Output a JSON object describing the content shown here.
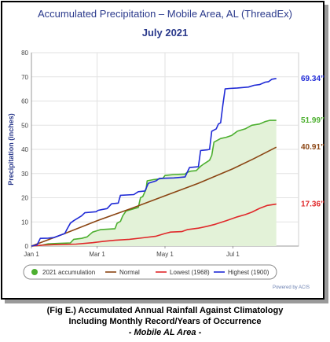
{
  "chart_data": {
    "type": "line",
    "title": "Accumulated Precipitation – Mobile Area, AL (ThreadEx)",
    "subtitle": "July 2021",
    "ylabel": "Precipitation (inches)",
    "ylim": [
      0,
      80
    ],
    "yticks": [
      0,
      10,
      20,
      30,
      40,
      50,
      60,
      70,
      80
    ],
    "xlim": [
      0,
      240
    ],
    "xticks": [
      {
        "label": "Jan 1",
        "day": 0
      },
      {
        "label": "Mar 1",
        "day": 59
      },
      {
        "label": "May 1",
        "day": 120
      },
      {
        "label": "Jul 1",
        "day": 181
      }
    ],
    "grid": true,
    "legend_position": "bottom",
    "series": [
      {
        "name": "2021 accumulation",
        "color": "#4caf2f",
        "fill": "#e3f2d8",
        "end_label": "51.99”",
        "points": [
          [
            0,
            0
          ],
          [
            3,
            0.1
          ],
          [
            8,
            0.3
          ],
          [
            15,
            0.9
          ],
          [
            25,
            1.1
          ],
          [
            35,
            1.3
          ],
          [
            38,
            2.8
          ],
          [
            45,
            3.2
          ],
          [
            50,
            3.8
          ],
          [
            55,
            5.8
          ],
          [
            58,
            6.2
          ],
          [
            62,
            6.8
          ],
          [
            75,
            7.2
          ],
          [
            77,
            9.5
          ],
          [
            80,
            10.2
          ],
          [
            82,
            12.5
          ],
          [
            85,
            14.5
          ],
          [
            90,
            15.2
          ],
          [
            96,
            16.0
          ],
          [
            98,
            20.0
          ],
          [
            100,
            20.5
          ],
          [
            103,
            23.5
          ],
          [
            104,
            27.0
          ],
          [
            110,
            27.5
          ],
          [
            115,
            27.8
          ],
          [
            118,
            28.0
          ],
          [
            120,
            29.2
          ],
          [
            128,
            29.6
          ],
          [
            138,
            29.8
          ],
          [
            140,
            30.5
          ],
          [
            143,
            31.0
          ],
          [
            148,
            31.2
          ],
          [
            152,
            33.0
          ],
          [
            155,
            34.0
          ],
          [
            160,
            35.5
          ],
          [
            162,
            37.5
          ],
          [
            164,
            43.0
          ],
          [
            170,
            44.5
          ],
          [
            175,
            45.0
          ],
          [
            180,
            45.8
          ],
          [
            185,
            47.5
          ],
          [
            192,
            48.5
          ],
          [
            198,
            50.0
          ],
          [
            205,
            50.5
          ],
          [
            210,
            51.5
          ],
          [
            214,
            52.0
          ],
          [
            220,
            51.99
          ]
        ]
      },
      {
        "name": "Normal",
        "color": "#8b4513",
        "end_label": "40.91”",
        "points": [
          [
            0,
            0
          ],
          [
            30,
            5.2
          ],
          [
            59,
            10.5
          ],
          [
            90,
            15.6
          ],
          [
            120,
            20.8
          ],
          [
            150,
            26.0
          ],
          [
            181,
            32.0
          ],
          [
            200,
            36.2
          ],
          [
            220,
            40.91
          ]
        ]
      },
      {
        "name": "Lowest (1968)",
        "color": "#e0282a",
        "end_label": "17.36”",
        "points": [
          [
            0,
            0
          ],
          [
            10,
            0.4
          ],
          [
            20,
            0.6
          ],
          [
            40,
            0.8
          ],
          [
            55,
            1.4
          ],
          [
            65,
            2.0
          ],
          [
            75,
            2.4
          ],
          [
            88,
            2.8
          ],
          [
            100,
            3.4
          ],
          [
            112,
            4.1
          ],
          [
            120,
            5.2
          ],
          [
            125,
            5.8
          ],
          [
            135,
            6.0
          ],
          [
            140,
            6.8
          ],
          [
            150,
            7.4
          ],
          [
            158,
            8.2
          ],
          [
            165,
            9.0
          ],
          [
            175,
            10.5
          ],
          [
            185,
            12.1
          ],
          [
            192,
            13.0
          ],
          [
            198,
            14.0
          ],
          [
            205,
            15.6
          ],
          [
            212,
            16.8
          ],
          [
            220,
            17.36
          ]
        ]
      },
      {
        "name": "Highest (1900)",
        "color": "#1f2ad6",
        "end_label": "69.34”",
        "points": [
          [
            0,
            0
          ],
          [
            5,
            0.5
          ],
          [
            8,
            3.2
          ],
          [
            15,
            3.3
          ],
          [
            20,
            3.5
          ],
          [
            30,
            5.2
          ],
          [
            32,
            7.0
          ],
          [
            35,
            9.5
          ],
          [
            38,
            10.5
          ],
          [
            45,
            12.5
          ],
          [
            48,
            13.8
          ],
          [
            58,
            14.2
          ],
          [
            60,
            14.8
          ],
          [
            68,
            15.5
          ],
          [
            72,
            17.5
          ],
          [
            78,
            17.8
          ],
          [
            80,
            21.0
          ],
          [
            92,
            21.3
          ],
          [
            96,
            22.5
          ],
          [
            102,
            22.8
          ],
          [
            105,
            26.0
          ],
          [
            112,
            27.0
          ],
          [
            115,
            28.0
          ],
          [
            128,
            28.2
          ],
          [
            138,
            28.6
          ],
          [
            142,
            32.5
          ],
          [
            150,
            32.8
          ],
          [
            152,
            39.5
          ],
          [
            158,
            39.8
          ],
          [
            160,
            40.0
          ],
          [
            162,
            47.5
          ],
          [
            164,
            48.0
          ],
          [
            166,
            48.5
          ],
          [
            168,
            50.5
          ],
          [
            170,
            51.0
          ],
          [
            172,
            58.5
          ],
          [
            174,
            65.0
          ],
          [
            178,
            65.2
          ],
          [
            185,
            65.4
          ],
          [
            195,
            65.8
          ],
          [
            200,
            66.5
          ],
          [
            205,
            66.8
          ],
          [
            210,
            67.8
          ],
          [
            213,
            68.0
          ],
          [
            216,
            69.0
          ],
          [
            220,
            69.34
          ]
        ]
      }
    ],
    "legend": [
      {
        "label": "2021 accumulation",
        "marker": "dot",
        "color": "#4caf2f"
      },
      {
        "label": "Normal",
        "marker": "line",
        "color": "#8b4513"
      },
      {
        "label": "Lowest (1968)",
        "marker": "line",
        "color": "#e0282a"
      },
      {
        "label": "Highest (1900)",
        "marker": "line",
        "color": "#1f2ad6"
      }
    ],
    "powered_by": "Powered by ACIS"
  },
  "caption": {
    "line1": "(Fig E.) Accumulated Annual Rainfall Against  Climatology",
    "line2": "Including Monthly Record/Years of Occurrence",
    "line3": "- Mobile AL Area -"
  }
}
